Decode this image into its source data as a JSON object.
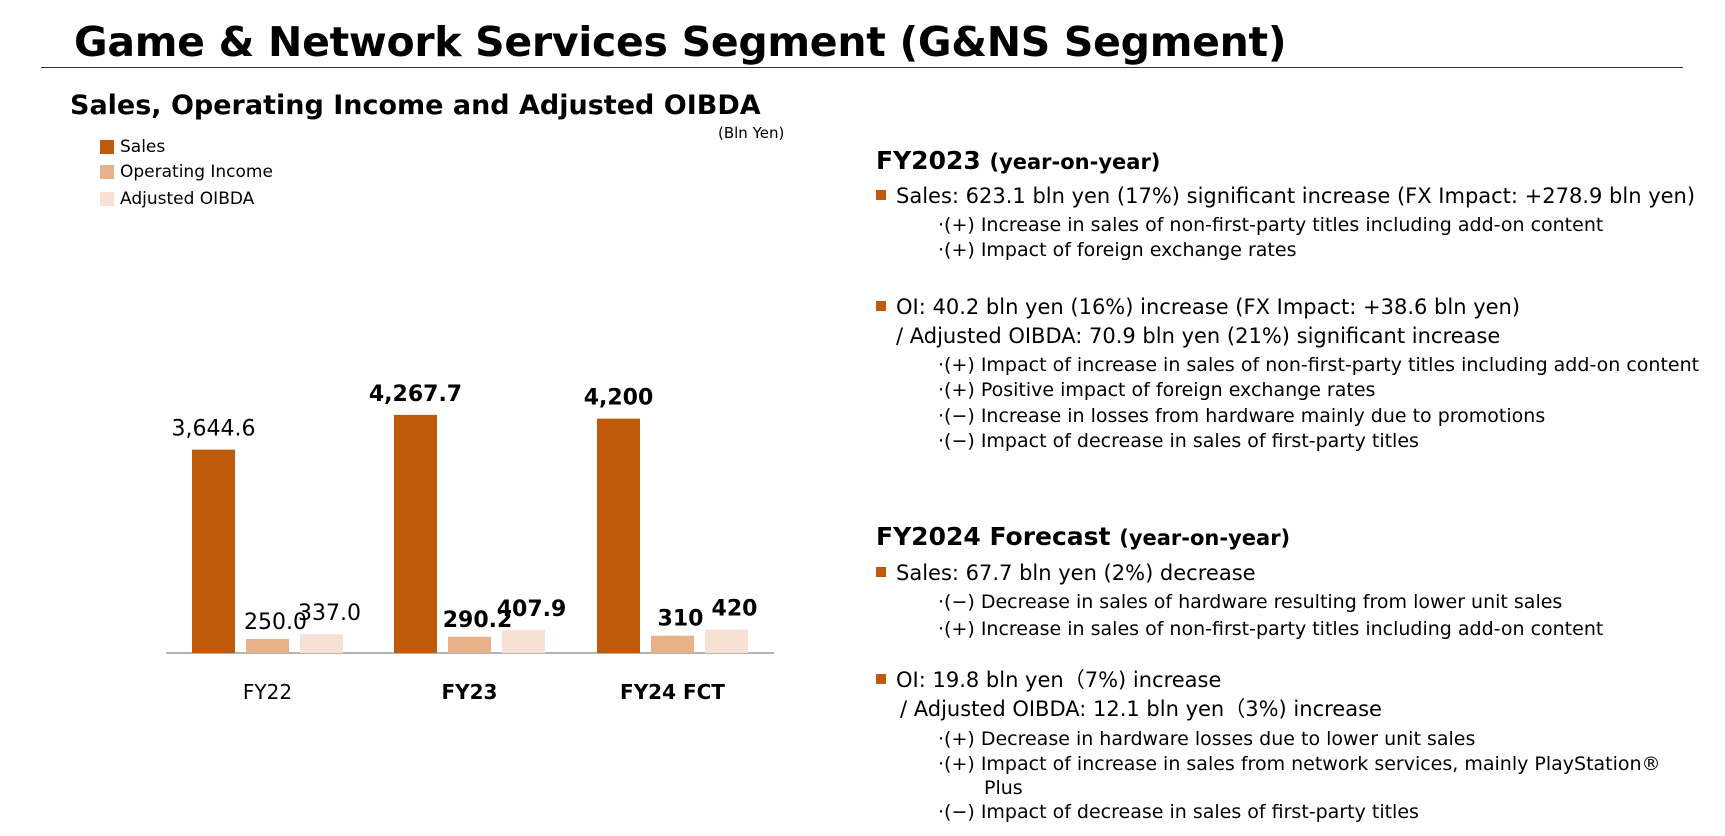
{
  "page": {
    "title": "Game & Network Services Segment (G&NS Segment)"
  },
  "chart_data": {
    "type": "bar",
    "title": "Sales, Operating Income and Adjusted OIBDA",
    "unit_label": "(Bln Yen)",
    "categories": [
      "FY22",
      "FY23",
      "FY24 FCT"
    ],
    "category_bold": [
      false,
      true,
      true
    ],
    "series": [
      {
        "name": "Sales",
        "color": "#bf5a0b",
        "values": [
          3644.6,
          4267.7,
          4200
        ],
        "labels": [
          "3,644.6",
          "4,267.7",
          "4,200"
        ]
      },
      {
        "name": "Operating Income",
        "color": "#e8b18a",
        "values": [
          250.0,
          290.2,
          310
        ],
        "labels": [
          "250.0",
          "290.2",
          "310"
        ]
      },
      {
        "name": "Adjusted OIBDA",
        "color": "#f7e1d5",
        "values": [
          337.0,
          407.9,
          420
        ],
        "labels": [
          "337.0",
          "407.9",
          "420"
        ]
      }
    ],
    "legend_position": "top-left",
    "grid": false
  },
  "fy2023": {
    "heading": "FY2023",
    "heading_suffix": "(year-on-year)",
    "sales_line": "Sales: 623.1 bln yen (17%) significant increase (FX Impact: +278.9 bln yen)",
    "sales_items": [
      "·(+) Increase in sales of non-first-party titles including add-on content",
      "·(+) Impact of foreign exchange rates"
    ],
    "oi_line": "OI:  40.2 bln yen (16%) increase  (FX Impact: +38.6 bln yen)",
    "oibda_line": "/ Adjusted OIBDA: 70.9 bln yen (21%) significant increase",
    "oi_items": [
      "·(+) Impact of increase in sales of non-first-party titles including add-on content",
      "·(+) Positive impact of foreign exchange rates",
      "·(−) Increase in losses from hardware mainly due to promotions",
      "·(−) Impact of decrease in sales of first-party titles"
    ]
  },
  "fy2024": {
    "heading": "FY2024 Forecast",
    "heading_suffix": "(year-on-year)",
    "sales_line": "Sales: 67.7 bln yen (2%) decrease",
    "sales_items": [
      "·(−) Decrease in sales of hardware resulting from lower unit sales",
      "·(+) Increase in sales of non-first-party titles including add-on content"
    ],
    "oi_line": "OI: 19.8 bln yen（7%) increase",
    "oibda_line": "/ Adjusted OIBDA: 12.1 bln yen（3%) increase",
    "oi_items": [
      "·(+) Decrease in hardware losses due to lower unit sales",
      "·(+) Impact of increase in sales from network services, mainly PlayStation®",
      "Plus",
      "·(−) Impact of decrease in sales of first-party titles"
    ]
  }
}
